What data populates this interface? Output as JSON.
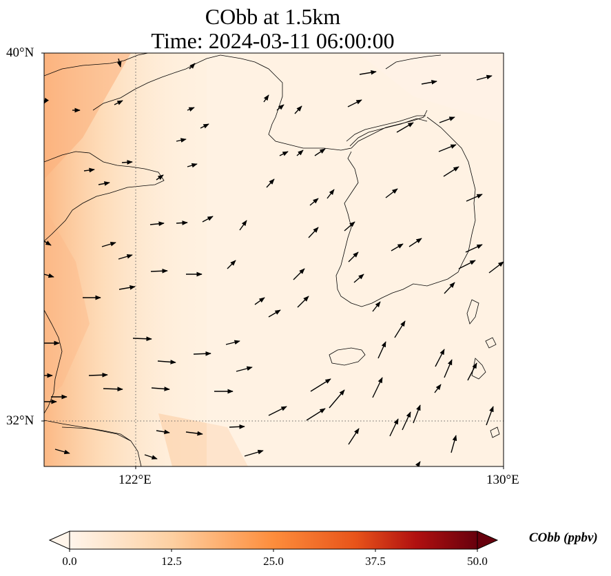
{
  "title": "CObb at 1.5km",
  "subtitle": "Time: 2024-03-11 06:00:00",
  "lat_labels": [
    "40°N",
    "32°N"
  ],
  "lon_labels": [
    "122°E",
    "130°E"
  ],
  "colorbar": {
    "label": "CObb (ppbv)",
    "ticks": [
      "0.0",
      "12.5",
      "25.0",
      "37.5",
      "50.0"
    ],
    "colors": [
      "#fff5eb",
      "#fdd0a2",
      "#fd8d3c",
      "#d94801",
      "#a50f15",
      "#67000d"
    ]
  },
  "map_extent": {
    "lon": [
      120,
      130
    ],
    "lat": [
      31,
      40
    ]
  },
  "gridlines": {
    "lons": [
      122
    ],
    "lats": [
      32
    ],
    "style": "dotted"
  }
}
